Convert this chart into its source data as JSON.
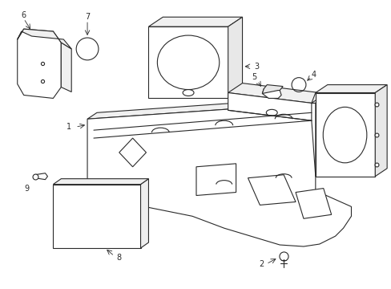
{
  "bg_color": "#ffffff",
  "line_color": "#2a2a2a",
  "lw": 0.8,
  "fig_width": 4.89,
  "fig_height": 3.6
}
